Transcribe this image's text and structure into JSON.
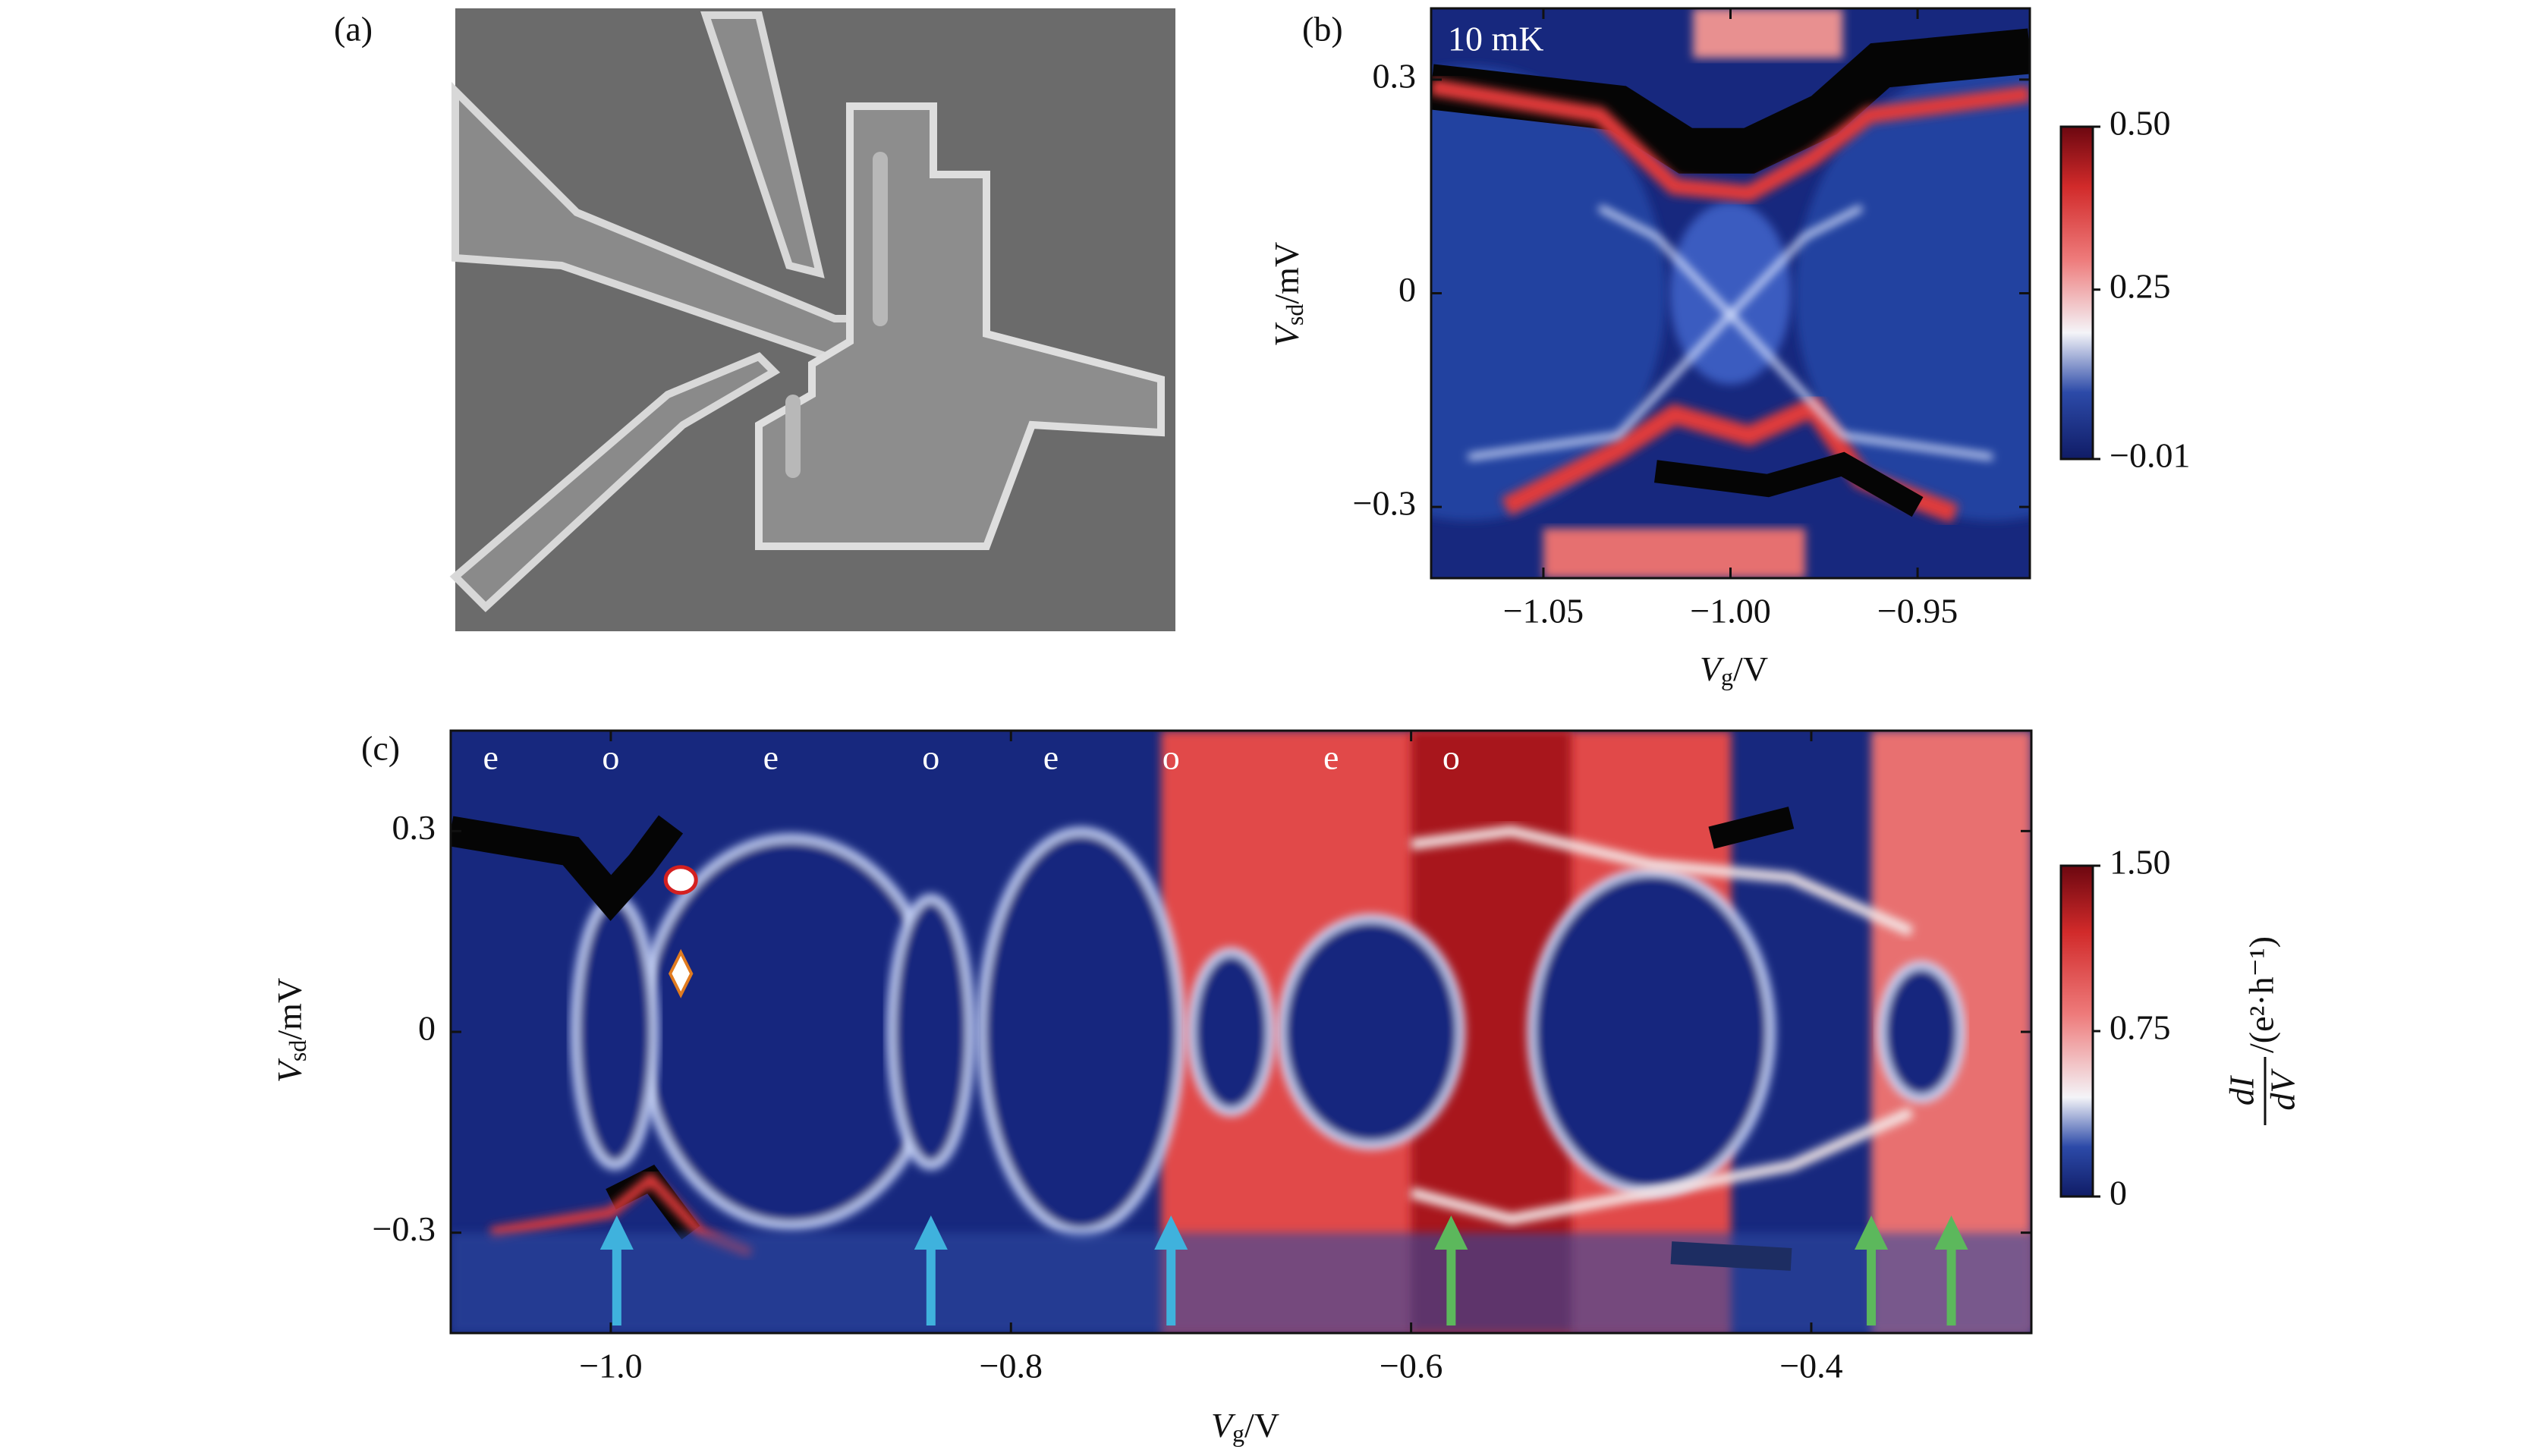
{
  "chart_data": [
    {
      "type": "image",
      "panel_label": "(a)"
    },
    {
      "type": "heatmap",
      "panel_label": "(b)",
      "annotation": "10 mK",
      "x_label": {
        "symbol": "V",
        "sub": "g",
        "unit": "/V"
      },
      "y_label": {
        "symbol": "V",
        "sub": "sd",
        "unit": "/mV"
      },
      "xlim": [
        -1.08,
        -0.92
      ],
      "ylim": [
        -0.4,
        0.4
      ],
      "xticks": [
        {
          "value": -1.05,
          "label": "−1.05"
        },
        {
          "value": -1.0,
          "label": "−1.00"
        },
        {
          "value": -0.95,
          "label": "−0.95"
        }
      ],
      "yticks": [
        {
          "value": -0.3,
          "label": "−0.3"
        },
        0,
        0.3
      ],
      "clim": [
        -0.01,
        0.5
      ],
      "cticks": [
        {
          "value": -0.01,
          "label": "−0.01"
        },
        0.25,
        {
          "value": 0.5,
          "label": "0.50"
        }
      ]
    },
    {
      "type": "heatmap",
      "panel_label": "(c)",
      "x_label": {
        "symbol": "V",
        "sub": "g",
        "unit": "/V"
      },
      "y_label": {
        "symbol": "V",
        "sub": "sd",
        "unit": "/mV"
      },
      "colorbar_label": {
        "numerator": "dI",
        "denominator": "dV",
        "unit": "/(e²·h⁻¹)"
      },
      "xlim": [
        -1.08,
        -0.29
      ],
      "ylim": [
        -0.45,
        0.45
      ],
      "xticks": [
        {
          "value": -1.0,
          "label": "−1.0"
        },
        {
          "value": -0.8,
          "label": "−0.8"
        },
        {
          "value": -0.6,
          "label": "−0.6"
        },
        {
          "value": -0.4,
          "label": "−0.4"
        }
      ],
      "yticks": [
        {
          "value": -0.3,
          "label": "−0.3"
        },
        0,
        0.3
      ],
      "clim": [
        0,
        1.5
      ],
      "cticks": [
        0,
        0.75,
        {
          "value": 1.5,
          "label": "1.50"
        }
      ],
      "parity_labels": [
        {
          "text": "e",
          "x": -1.06
        },
        {
          "text": "o",
          "x": -1.0
        },
        {
          "text": "e",
          "x": -0.92
        },
        {
          "text": "o",
          "x": -0.84
        },
        {
          "text": "e",
          "x": -0.78
        },
        {
          "text": "o",
          "x": -0.72
        },
        {
          "text": "e",
          "x": -0.64
        },
        {
          "text": "o",
          "x": -0.58
        }
      ],
      "arrows": [
        {
          "x": -0.997,
          "color": "#3fb2dd"
        },
        {
          "x": -0.84,
          "color": "#3fb2dd"
        },
        {
          "x": -0.72,
          "color": "#3fb2dd"
        },
        {
          "x": -0.58,
          "color": "#5cb85c"
        },
        {
          "x": -0.37,
          "color": "#5cb85c"
        },
        {
          "x": -0.33,
          "color": "#5cb85c"
        }
      ],
      "markers": [
        {
          "shape": "circle",
          "x": -0.965,
          "y": 0.227
        },
        {
          "shape": "diamond",
          "x": -0.965,
          "y": 0.087
        }
      ]
    }
  ]
}
